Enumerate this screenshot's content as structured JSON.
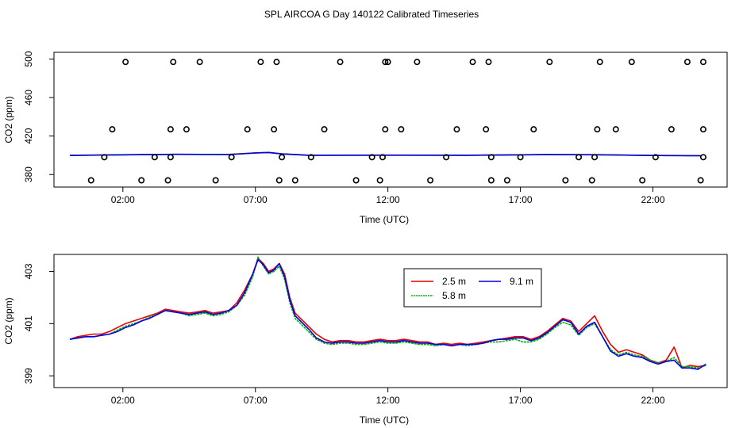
{
  "title": "SPL AIRCOA G  Day 140122  Calibrated Timeseries",
  "chart_data": [
    {
      "type": "scatter+line",
      "xlabel": "Time (UTC)",
      "ylabel": "CO2 (ppm)",
      "xlim": [
        -0.6,
        24.8
      ],
      "ylim": [
        367,
        507
      ],
      "xticks": [
        2,
        7,
        12,
        17,
        22
      ],
      "xtick_labels": [
        "02:00",
        "07:00",
        "12:00",
        "17:00",
        "22:00"
      ],
      "yticks": [
        380,
        420,
        460,
        500
      ],
      "ytick_labels": [
        "380",
        "420",
        "460",
        "500"
      ],
      "calibration_points": {
        "x": [
          0.8,
          1.3,
          1.6,
          2.1,
          2.7,
          3.2,
          3.7,
          3.8,
          3.8,
          3.9,
          4.4,
          4.9,
          5.5,
          6.1,
          6.7,
          7.2,
          7.7,
          7.8,
          7.9,
          8.0,
          8.5,
          9.1,
          9.6,
          10.2,
          10.8,
          11.4,
          11.7,
          11.8,
          11.9,
          11.9,
          12.0,
          12.5,
          13.1,
          13.6,
          14.2,
          14.6,
          15.2,
          15.7,
          15.8,
          15.9,
          15.9,
          16.5,
          17.0,
          17.5,
          18.1,
          18.7,
          19.2,
          19.7,
          19.8,
          19.9,
          20.0,
          20.6,
          21.2,
          21.6,
          22.1,
          22.7,
          23.3,
          23.8,
          23.9,
          23.9,
          23.9
        ],
        "y": [
          374,
          398,
          427,
          497,
          374,
          398,
          374,
          398,
          427,
          497,
          427,
          497,
          374,
          398,
          427,
          497,
          427,
          497,
          374,
          398,
          374,
          398,
          427,
          497,
          374,
          398,
          374,
          398,
          427,
          497,
          497,
          427,
          497,
          374,
          398,
          427,
          497,
          427,
          497,
          398,
          374,
          374,
          398,
          427,
          497,
          374,
          398,
          374,
          398,
          427,
          497,
          427,
          497,
          374,
          398,
          427,
          497,
          374,
          398,
          427,
          497
        ]
      },
      "series": [
        {
          "name": "2.5 m",
          "color": "#e60000",
          "x": [
            0,
            2,
            4,
            6,
            7,
            7.5,
            8,
            9,
            12,
            15,
            18,
            20,
            22,
            23.8
          ],
          "y": [
            400.0,
            400.5,
            401.0,
            400.9,
            402.5,
            403.0,
            401.5,
            400.1,
            400.2,
            400.1,
            400.8,
            400.6,
            399.9,
            399.6
          ]
        },
        {
          "name": "5.8 m",
          "color": "#00b400",
          "x": [
            0,
            2,
            4,
            6,
            7,
            7.5,
            8,
            9,
            12,
            15,
            18,
            20,
            22,
            23.8
          ],
          "y": [
            399.9,
            400.4,
            400.9,
            400.8,
            402.4,
            402.9,
            401.4,
            400.0,
            400.1,
            400.0,
            400.7,
            400.5,
            399.8,
            399.5
          ]
        },
        {
          "name": "9.1 m",
          "color": "#0000e6",
          "x": [
            0,
            2,
            4,
            6,
            7,
            7.5,
            8,
            9,
            12,
            15,
            18,
            20,
            22,
            23.8
          ],
          "y": [
            399.9,
            400.5,
            401.0,
            400.8,
            402.4,
            402.9,
            401.4,
            400.0,
            400.1,
            400.0,
            400.7,
            400.5,
            399.8,
            399.5
          ]
        }
      ]
    },
    {
      "type": "line",
      "xlabel": "Time (UTC)",
      "ylabel": "CO2 (ppm)",
      "xlim": [
        -0.6,
        24.8
      ],
      "ylim": [
        398.55,
        403.65
      ],
      "xticks": [
        2,
        7,
        12,
        17,
        22
      ],
      "xtick_labels": [
        "02:00",
        "07:00",
        "12:00",
        "17:00",
        "22:00"
      ],
      "yticks": [
        399,
        401,
        403
      ],
      "ytick_labels": [
        "399",
        "401",
        "403"
      ],
      "legend_position": "top-center",
      "series": [
        {
          "name": "2.5 m",
          "color": "#e60000",
          "x": [
            0,
            0.3,
            0.6,
            0.9,
            1.2,
            1.5,
            1.8,
            2.1,
            2.4,
            2.7,
            3.0,
            3.3,
            3.6,
            3.9,
            4.2,
            4.5,
            4.8,
            5.1,
            5.4,
            5.7,
            6.0,
            6.3,
            6.6,
            6.9,
            7.1,
            7.3,
            7.5,
            7.7,
            7.9,
            8.1,
            8.3,
            8.5,
            8.7,
            9.0,
            9.3,
            9.6,
            9.9,
            10.2,
            10.5,
            10.8,
            11.1,
            11.4,
            11.7,
            12.0,
            12.3,
            12.6,
            12.9,
            13.2,
            13.5,
            13.8,
            14.1,
            14.4,
            14.7,
            15.0,
            15.3,
            15.6,
            15.9,
            16.2,
            16.5,
            16.8,
            17.1,
            17.4,
            17.7,
            18.0,
            18.3,
            18.6,
            18.9,
            19.2,
            19.5,
            19.8,
            20.1,
            20.4,
            20.7,
            21.0,
            21.3,
            21.6,
            21.9,
            22.2,
            22.5,
            22.8,
            23.1,
            23.4,
            23.7,
            24.0
          ],
          "y": [
            400.4,
            400.5,
            400.55,
            400.6,
            400.6,
            400.7,
            400.85,
            401.0,
            401.1,
            401.2,
            401.3,
            401.4,
            401.55,
            401.5,
            401.45,
            401.4,
            401.45,
            401.5,
            401.4,
            401.45,
            401.5,
            401.8,
            402.3,
            402.9,
            403.5,
            403.3,
            403.0,
            403.1,
            403.3,
            402.9,
            402.0,
            401.4,
            401.2,
            400.9,
            400.6,
            400.4,
            400.3,
            400.35,
            400.35,
            400.3,
            400.3,
            400.35,
            400.4,
            400.35,
            400.35,
            400.4,
            400.35,
            400.3,
            400.3,
            400.2,
            400.25,
            400.2,
            400.25,
            400.2,
            400.25,
            400.3,
            400.35,
            400.4,
            400.45,
            400.5,
            400.5,
            400.4,
            400.5,
            400.7,
            400.95,
            401.2,
            401.1,
            400.7,
            401.0,
            401.3,
            400.7,
            400.2,
            399.9,
            400.0,
            399.9,
            399.8,
            399.6,
            399.5,
            399.6,
            400.1,
            399.3,
            399.4,
            399.35,
            399.4
          ]
        },
        {
          "name": "5.8 m",
          "color": "#00b400",
          "x": [
            0,
            0.3,
            0.6,
            0.9,
            1.2,
            1.5,
            1.8,
            2.1,
            2.4,
            2.7,
            3.0,
            3.3,
            3.6,
            3.9,
            4.2,
            4.5,
            4.8,
            5.1,
            5.4,
            5.7,
            6.0,
            6.3,
            6.6,
            6.9,
            7.1,
            7.3,
            7.5,
            7.7,
            7.9,
            8.1,
            8.3,
            8.5,
            8.7,
            9.0,
            9.3,
            9.6,
            9.9,
            10.2,
            10.5,
            10.8,
            11.1,
            11.4,
            11.7,
            12.0,
            12.3,
            12.6,
            12.9,
            13.2,
            13.5,
            13.8,
            14.1,
            14.4,
            14.7,
            15.0,
            15.3,
            15.6,
            15.9,
            16.2,
            16.5,
            16.8,
            17.1,
            17.4,
            17.7,
            18.0,
            18.3,
            18.6,
            18.9,
            19.2,
            19.5,
            19.8,
            20.1,
            20.4,
            20.7,
            21.0,
            21.3,
            21.6,
            21.9,
            22.2,
            22.5,
            22.8,
            23.1,
            23.4,
            23.7,
            24.0
          ],
          "y": [
            400.4,
            400.45,
            400.5,
            400.5,
            400.55,
            400.6,
            400.75,
            400.9,
            401.0,
            401.1,
            401.25,
            401.35,
            401.5,
            401.45,
            401.4,
            401.3,
            401.35,
            401.4,
            401.3,
            401.35,
            401.45,
            401.7,
            402.1,
            402.8,
            403.55,
            403.2,
            402.9,
            403.0,
            403.2,
            402.7,
            401.8,
            401.2,
            401.0,
            400.7,
            400.4,
            400.25,
            400.2,
            400.25,
            400.25,
            400.2,
            400.2,
            400.25,
            400.3,
            400.25,
            400.25,
            400.3,
            400.25,
            400.2,
            400.2,
            400.15,
            400.2,
            400.15,
            400.2,
            400.15,
            400.2,
            400.25,
            400.3,
            400.3,
            400.35,
            400.4,
            400.3,
            400.3,
            400.4,
            400.6,
            400.85,
            401.05,
            400.95,
            400.55,
            400.85,
            401.0,
            400.5,
            400.0,
            399.8,
            399.9,
            399.8,
            399.75,
            399.6,
            399.5,
            399.55,
            399.7,
            399.35,
            399.35,
            399.3,
            399.4
          ]
        },
        {
          "name": "9.1 m",
          "color": "#0000e6",
          "x": [
            0,
            0.3,
            0.6,
            0.9,
            1.2,
            1.5,
            1.8,
            2.1,
            2.4,
            2.7,
            3.0,
            3.3,
            3.6,
            3.9,
            4.2,
            4.5,
            4.8,
            5.1,
            5.4,
            5.7,
            6.0,
            6.3,
            6.6,
            6.9,
            7.1,
            7.3,
            7.5,
            7.7,
            7.9,
            8.1,
            8.3,
            8.5,
            8.7,
            9.0,
            9.3,
            9.6,
            9.9,
            10.2,
            10.5,
            10.8,
            11.1,
            11.4,
            11.7,
            12.0,
            12.3,
            12.6,
            12.9,
            13.2,
            13.5,
            13.8,
            14.1,
            14.4,
            14.7,
            15.0,
            15.3,
            15.6,
            15.9,
            16.2,
            16.5,
            16.8,
            17.1,
            17.4,
            17.7,
            18.0,
            18.3,
            18.6,
            18.9,
            19.2,
            19.5,
            19.8,
            20.1,
            20.4,
            20.7,
            21.0,
            21.3,
            21.6,
            21.9,
            22.2,
            22.5,
            22.8,
            23.1,
            23.4,
            23.7,
            24.0
          ],
          "y": [
            400.4,
            400.45,
            400.5,
            400.5,
            400.55,
            400.6,
            400.7,
            400.85,
            400.95,
            401.1,
            401.2,
            401.35,
            401.5,
            401.45,
            401.4,
            401.35,
            401.4,
            401.45,
            401.35,
            401.4,
            401.5,
            401.7,
            402.2,
            402.9,
            403.45,
            403.25,
            402.95,
            403.05,
            403.3,
            402.8,
            401.9,
            401.3,
            401.1,
            400.8,
            400.45,
            400.3,
            400.25,
            400.3,
            400.3,
            400.25,
            400.25,
            400.3,
            400.35,
            400.3,
            400.3,
            400.35,
            400.3,
            400.25,
            400.25,
            400.2,
            400.2,
            400.15,
            400.2,
            400.2,
            400.2,
            400.25,
            400.35,
            400.4,
            400.4,
            400.45,
            400.45,
            400.35,
            400.45,
            400.65,
            400.9,
            401.15,
            401.05,
            400.6,
            400.9,
            401.05,
            400.5,
            399.95,
            399.75,
            399.85,
            399.75,
            399.7,
            399.55,
            399.45,
            399.55,
            399.6,
            399.3,
            399.3,
            399.25,
            399.45
          ]
        }
      ]
    }
  ]
}
